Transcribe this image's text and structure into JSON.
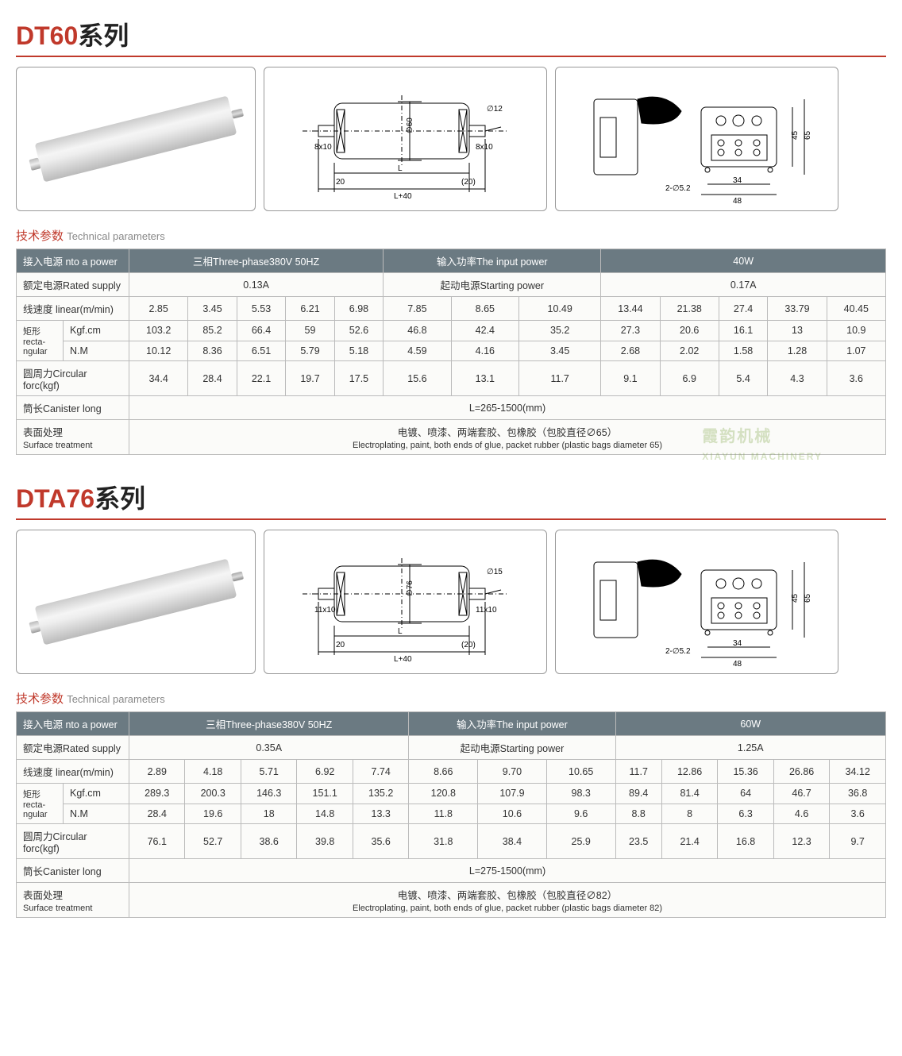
{
  "colors": {
    "accent": "#c0392b",
    "header_bg": "#6b7a82",
    "header_fg": "#ffffff",
    "cell_bg": "#fbfbf9",
    "border": "#bbbbbb",
    "text": "#333333",
    "en_muted": "#888888"
  },
  "watermark": {
    "text_cn": "霞韵机械",
    "text_en": "XIAYUN MACHINERY"
  },
  "sections": [
    {
      "id": "dt60",
      "title_red": "DT60",
      "title_blk": "系列",
      "diagram": {
        "shaft": "8x10",
        "edge": "20",
        "edge_r": "(20)",
        "L": "L",
        "L40": "L+40",
        "dia": "∅60",
        "dia2": "∅12",
        "holes": "2-∅5.2",
        "w1": "34",
        "w2": "48",
        "h1": "45",
        "h2": "65"
      },
      "subhead_cn": "技术参数",
      "subhead_en": "Technical parameters",
      "hdr": {
        "power_label": "接入电源 nto a power",
        "phase": "三相Three-phase380V  50HZ",
        "input_label": "输入功率The input power",
        "watt": "40W"
      },
      "rated": {
        "label": "额定电源Rated supply",
        "val": "0.13A",
        "start_label": "起动电源Starting power",
        "start_val": "0.17A"
      },
      "linear": {
        "label": "线速度 linear(m/min)",
        "vals": [
          "2.85",
          "3.45",
          "5.53",
          "6.21",
          "6.98",
          "7.85",
          "8.65",
          "10.49",
          "13.44",
          "21.38",
          "27.4",
          "33.79",
          "40.45"
        ]
      },
      "rect_label": "矩形\nrecta-\nngular",
      "kgfcm": {
        "label": "Kgf.cm",
        "vals": [
          "103.2",
          "85.2",
          "66.4",
          "59",
          "52.6",
          "46.8",
          "42.4",
          "35.2",
          "27.3",
          "20.6",
          "16.1",
          "13",
          "10.9"
        ]
      },
      "nm": {
        "label": "N.M",
        "vals": [
          "10.12",
          "8.36",
          "6.51",
          "5.79",
          "5.18",
          "4.59",
          "4.16",
          "3.45",
          "2.68",
          "2.02",
          "1.58",
          "1.28",
          "1.07"
        ]
      },
      "circ": {
        "label": "圆周力Circular forc(kgf)",
        "vals": [
          "34.4",
          "28.4",
          "22.1",
          "19.7",
          "17.5",
          "15.6",
          "13.1",
          "11.7",
          "9.1",
          "6.9",
          "5.4",
          "4.3",
          "3.6"
        ]
      },
      "canister": {
        "label": "筒长Canister long",
        "val": "L=265-1500(mm)"
      },
      "surface": {
        "label_cn": "表面处理",
        "label_en": "Surface treatment",
        "val_cn": "电镀、喷漆、两端套胶、包橡胶（包胶直径∅65）",
        "val_en": "Electroplating, paint, both ends of glue, packet rubber (plastic bags diameter 65)"
      }
    },
    {
      "id": "dta76",
      "title_red": "DTA76",
      "title_blk": "系列",
      "diagram": {
        "shaft": "11x10",
        "edge": "20",
        "edge_r": "(20)",
        "L": "L",
        "L40": "L+40",
        "dia": "∅76",
        "dia2": "∅15",
        "holes": "2-∅5.2",
        "w1": "34",
        "w2": "48",
        "h1": "45",
        "h2": "65"
      },
      "subhead_cn": "技术参数",
      "subhead_en": "Technical parameters",
      "hdr": {
        "power_label": "接入电源 nto a power",
        "phase": "三相Three-phase380V  50HZ",
        "input_label": "输入功率The input power",
        "watt": "60W"
      },
      "rated": {
        "label": "额定电源Rated supply",
        "val": "0.35A",
        "start_label": "起动电源Starting power",
        "start_val": "1.25A"
      },
      "linear": {
        "label": "线速度 linear(m/min)",
        "vals": [
          "2.89",
          "4.18",
          "5.71",
          "6.92",
          "7.74",
          "8.66",
          "9.70",
          "10.65",
          "11.7",
          "12.86",
          "15.36",
          "26.86",
          "34.12"
        ]
      },
      "rect_label": "矩形\nrecta-\nngular",
      "kgfcm": {
        "label": "Kgf.cm",
        "vals": [
          "289.3",
          "200.3",
          "146.3",
          "151.1",
          "135.2",
          "120.8",
          "107.9",
          "98.3",
          "89.4",
          "81.4",
          "64",
          "46.7",
          "36.8"
        ]
      },
      "nm": {
        "label": "N.M",
        "vals": [
          "28.4",
          "19.6",
          "18",
          "14.8",
          "13.3",
          "11.8",
          "10.6",
          "9.6",
          "8.8",
          "8",
          "6.3",
          "4.6",
          "3.6"
        ]
      },
      "circ": {
        "label": "圆周力Circular forc(kgf)",
        "vals": [
          "76.1",
          "52.7",
          "38.6",
          "39.8",
          "35.6",
          "31.8",
          "38.4",
          "25.9",
          "23.5",
          "21.4",
          "16.8",
          "12.3",
          "9.7"
        ]
      },
      "canister": {
        "label": "筒长Canister long",
        "val": "L=275-1500(mm)"
      },
      "surface": {
        "label_cn": "表面处理",
        "label_en": "Surface treatment",
        "val_cn": "电镀、喷漆、两端套胶、包橡胶（包胶直径∅82）",
        "val_en": "Electroplating, paint, both ends of glue, packet rubber (plastic bags diameter 82)"
      }
    }
  ]
}
